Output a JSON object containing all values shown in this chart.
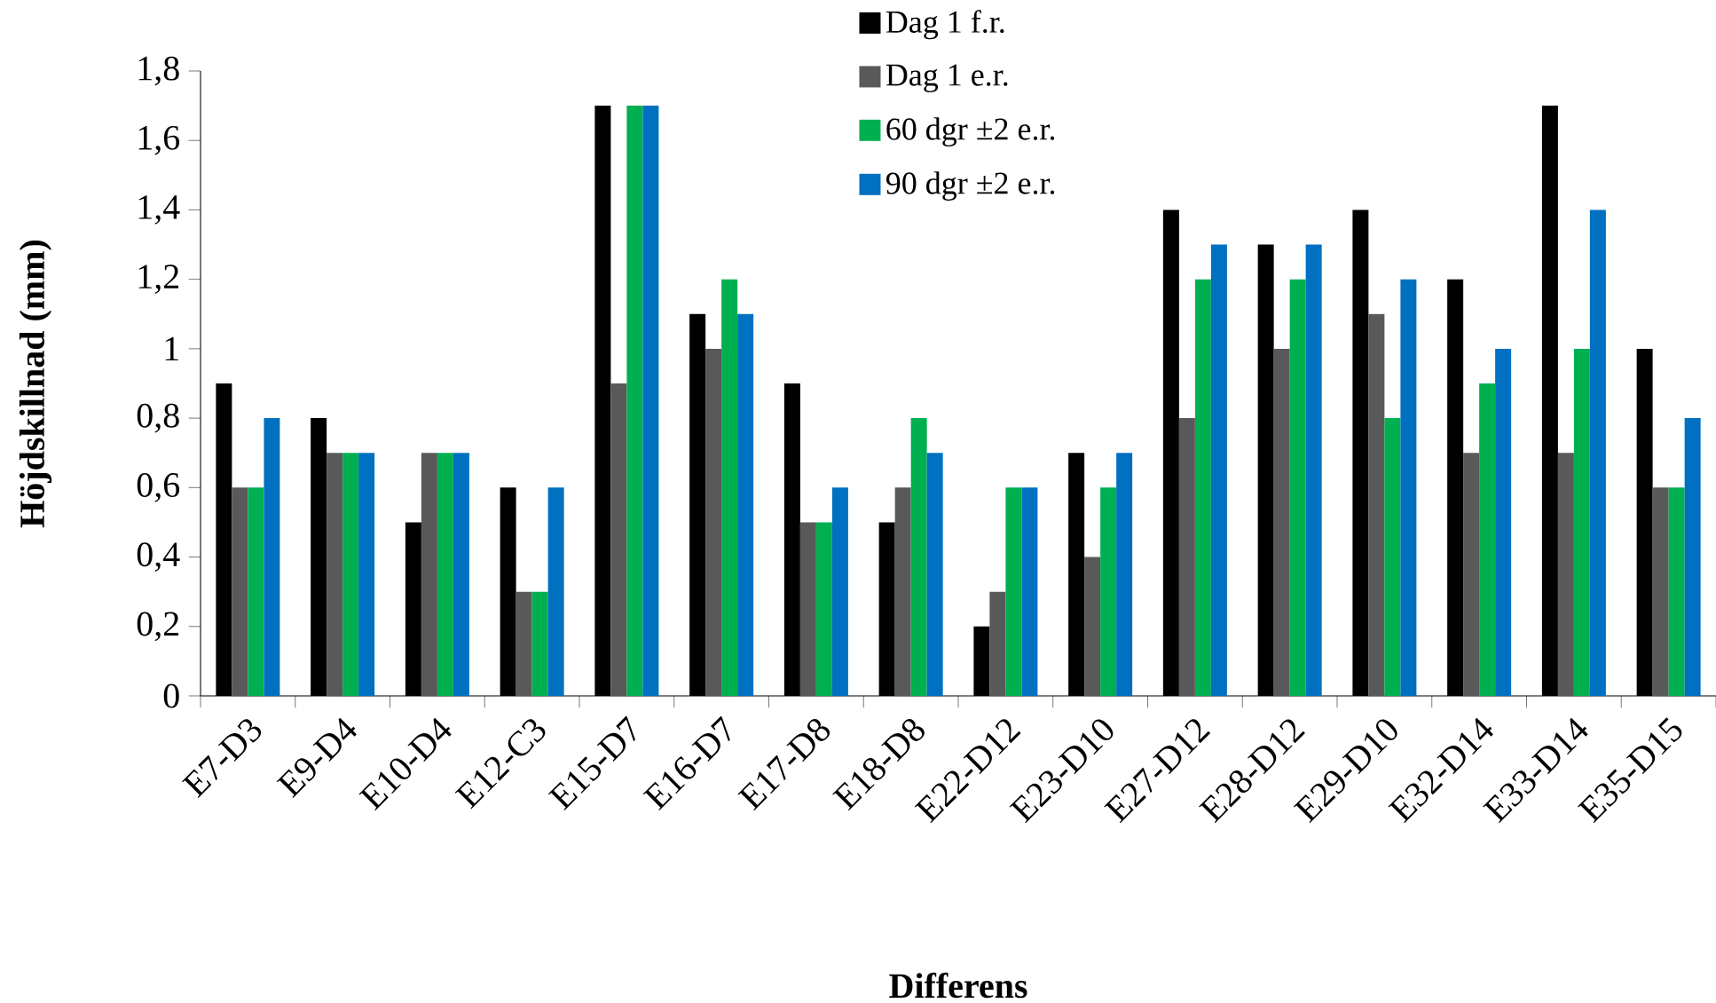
{
  "chart_data": {
    "type": "bar",
    "xlabel": "Differens",
    "ylabel": "Höjdskillnad (mm)",
    "categories": [
      "E7-D3",
      "E9-D4",
      "E10-D4",
      "E12-C3",
      "E15-D7",
      "E16-D7",
      "E17-D8",
      "E18-D8",
      "E22-D12",
      "E23-D10",
      "E27-D12",
      "E28-D12",
      "E29-D10",
      "E32-D14",
      "E33-D14",
      "E35-D15"
    ],
    "series": [
      {
        "name": "Dag 1 f.r.",
        "color": "#000000",
        "values": [
          0.9,
          0.8,
          0.5,
          0.6,
          1.7,
          1.1,
          0.9,
          0.5,
          0.2,
          0.7,
          1.4,
          1.3,
          1.4,
          1.2,
          1.7,
          1.0
        ]
      },
      {
        "name": "Dag 1 e.r.",
        "color": "#595959",
        "values": [
          0.6,
          0.7,
          0.7,
          0.3,
          0.9,
          1.0,
          0.5,
          0.6,
          0.3,
          0.4,
          0.8,
          1.0,
          1.1,
          0.7,
          0.7,
          0.6
        ]
      },
      {
        "name": "60 dgr ±2 e.r.",
        "color": "#00b050",
        "values": [
          0.6,
          0.7,
          0.7,
          0.3,
          1.7,
          1.2,
          0.5,
          0.8,
          0.6,
          0.6,
          1.2,
          1.2,
          0.8,
          0.9,
          1.0,
          0.6
        ]
      },
      {
        "name": "90 dgr ±2 e.r.",
        "color": "#0070c0",
        "values": [
          0.8,
          0.7,
          0.7,
          0.6,
          1.7,
          1.1,
          0.6,
          0.7,
          0.6,
          0.7,
          1.3,
          1.3,
          1.2,
          1.0,
          1.4,
          0.8
        ]
      }
    ],
    "ylim": [
      0,
      1.8
    ],
    "yticks": [
      0,
      {
        "value": 0.2,
        "label": "0,2"
      },
      {
        "value": 0.4,
        "label": "0,4"
      },
      {
        "value": 0.6,
        "label": "0,6"
      },
      {
        "value": 0.8,
        "label": "0,8"
      },
      1,
      {
        "value": 1.2,
        "label": "1,2"
      },
      {
        "value": 1.4,
        "label": "1,4"
      },
      {
        "value": 1.6,
        "label": "1,6"
      },
      {
        "value": 1.8,
        "label": "1,8"
      }
    ],
    "legend": "top"
  }
}
